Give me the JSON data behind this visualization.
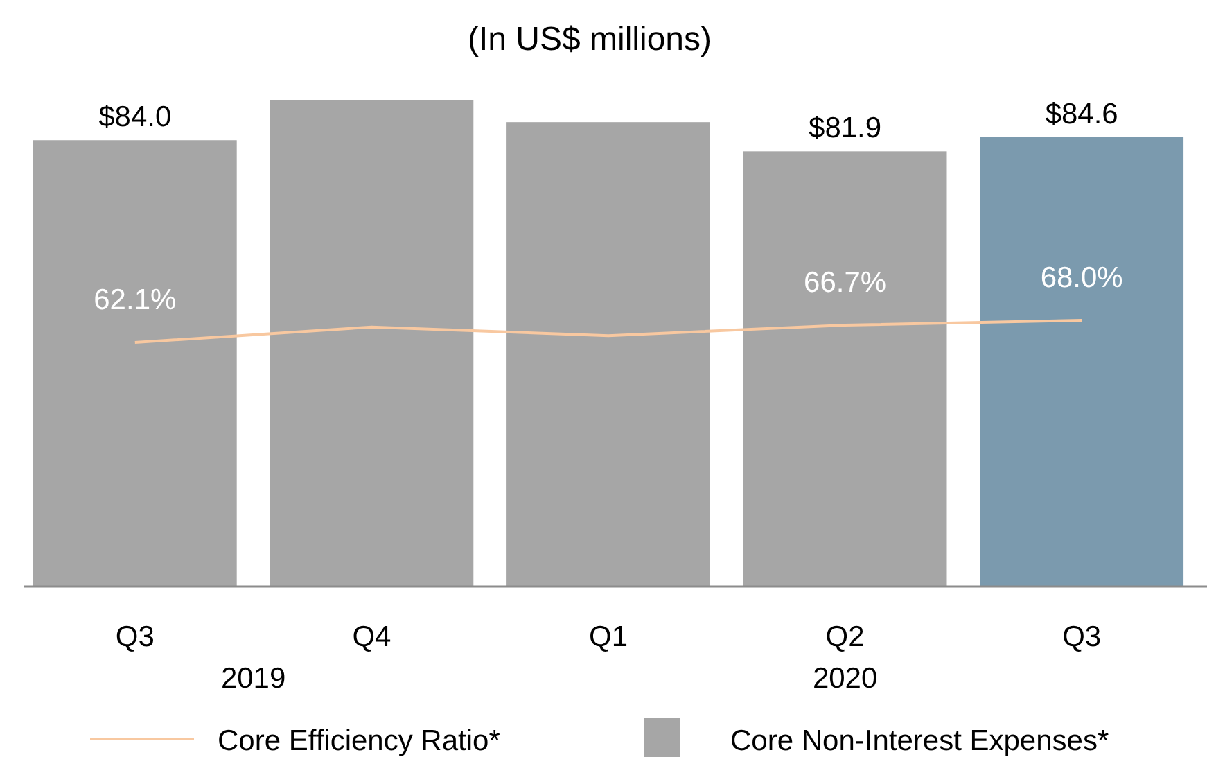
{
  "chart_data": {
    "type": "bar",
    "title": "(In US$ millions)",
    "categories": [
      "Q3",
      "Q4",
      "Q1",
      "Q2",
      "Q3"
    ],
    "series": [
      {
        "name": "Core Efficiency Ratio*",
        "type": "line",
        "axis": "y2",
        "color": "#f8c8a0",
        "values": [
          62.1,
          66.2,
          63.9,
          66.7,
          68.0
        ],
        "value_labels": [
          "62.1%",
          null,
          null,
          "66.7%",
          "68.0%"
        ]
      },
      {
        "name": "Core Non-Interest Expenses*",
        "color": "#a6a6a6",
        "colors": [
          "#a6a6a6",
          "#a6a6a6",
          "#a6a6a6",
          "#a6a6a6",
          "#7b9aae"
        ],
        "values": [
          84.0,
          91.6,
          87.4,
          81.9,
          84.6
        ],
        "value_labels": [
          "$84.0",
          null,
          null,
          "$81.9",
          "$84.6"
        ]
      }
    ],
    "annotations": [
      "2019",
      "2020"
    ],
    "legend": "bottom"
  }
}
